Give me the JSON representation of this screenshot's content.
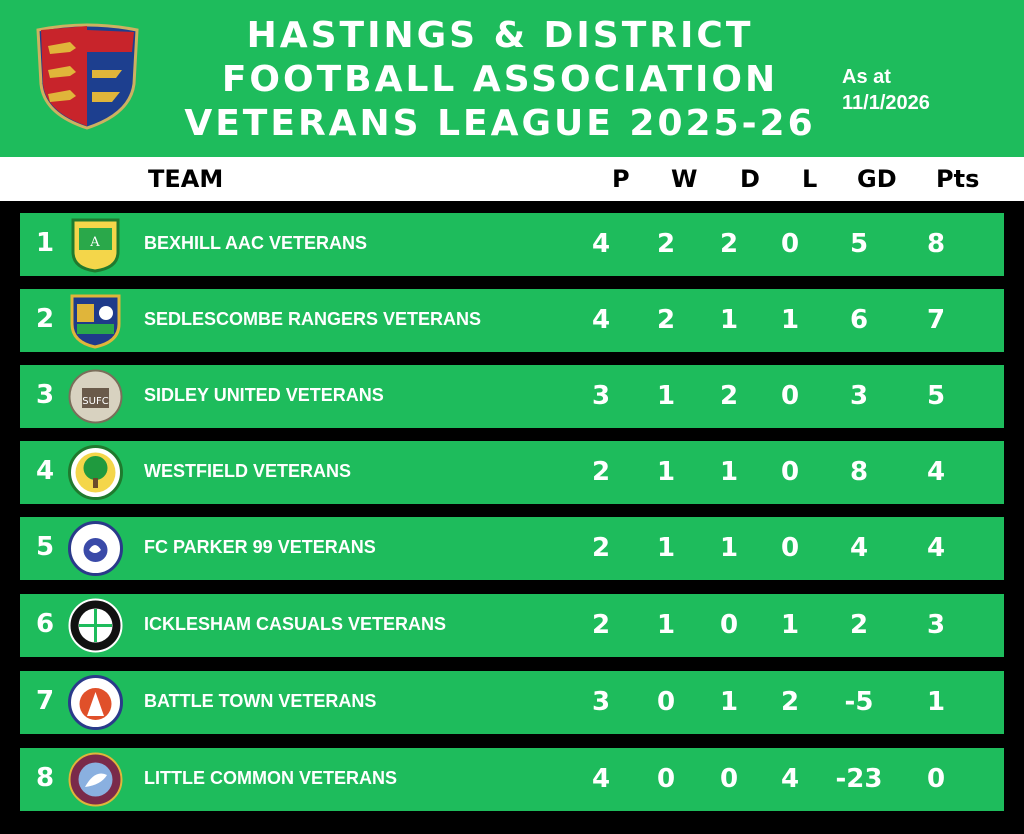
{
  "header": {
    "title_lines": [
      "HASTINGS & DISTRICT",
      "FOOTBALL ASSOCIATION",
      "VETERANS LEAGUE 2025-26"
    ],
    "as_at_label": "As at",
    "as_at_date": "11/1/2026",
    "crest_icon": "heraldic-shield-three-lions-icon"
  },
  "columns": {
    "team": "TEAM",
    "p": "P",
    "w": "W",
    "d": "D",
    "l": "L",
    "gd": "GD",
    "pts": "Pts"
  },
  "colors": {
    "green": "#1ebc5c",
    "white": "#ffffff",
    "black": "#000000"
  },
  "rows": [
    {
      "pos": "1",
      "team": "BEXHILL AAC VETERANS",
      "p": "4",
      "w": "2",
      "d": "2",
      "l": "0",
      "gd": "5",
      "pts": "8",
      "badge": "bexhill-aac-badge-icon"
    },
    {
      "pos": "2",
      "team": "SEDLESCOMBE RANGERS VETERANS",
      "p": "4",
      "w": "2",
      "d": "1",
      "l": "1",
      "gd": "6",
      "pts": "7",
      "badge": "sedlescombe-rangers-badge-icon"
    },
    {
      "pos": "3",
      "team": "SIDLEY UNITED VETERANS",
      "p": "3",
      "w": "1",
      "d": "2",
      "l": "0",
      "gd": "3",
      "pts": "5",
      "badge": "sidley-united-badge-icon"
    },
    {
      "pos": "4",
      "team": "WESTFIELD VETERANS",
      "p": "2",
      "w": "1",
      "d": "1",
      "l": "0",
      "gd": "8",
      "pts": "4",
      "badge": "westfield-tree-badge-icon"
    },
    {
      "pos": "5",
      "team": "FC PARKER 99 VETERANS",
      "p": "2",
      "w": "1",
      "d": "1",
      "l": "0",
      "gd": "4",
      "pts": "4",
      "badge": "fc-parker-badge-icon"
    },
    {
      "pos": "6",
      "team": "ICKLESHAM CASUALS VETERANS",
      "p": "2",
      "w": "1",
      "d": "0",
      "l": "1",
      "gd": "2",
      "pts": "3",
      "badge": "icklesham-casuals-badge-icon"
    },
    {
      "pos": "7",
      "team": "BATTLE TOWN VETERANS",
      "p": "3",
      "w": "0",
      "d": "1",
      "l": "2",
      "gd": "-5",
      "pts": "1",
      "badge": "battle-town-badge-icon"
    },
    {
      "pos": "8",
      "team": "LITTLE COMMON VETERANS",
      "p": "4",
      "w": "0",
      "d": "0",
      "l": "4",
      "gd": "-23",
      "pts": "0",
      "badge": "little-common-badge-icon"
    }
  ]
}
